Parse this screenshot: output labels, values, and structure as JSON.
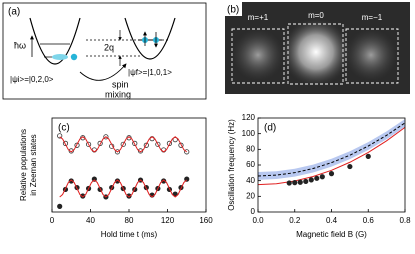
{
  "panel_a": {
    "label": "(a)",
    "hbar_omega": "ħω",
    "q_label": "2q",
    "initial_state": "|ψi>=|0,2,0>",
    "final_state": "|ψf>=|1,0,1>",
    "mixing_label": [
      "spin",
      "mixing"
    ]
  },
  "panel_b": {
    "label": "(b)",
    "components": [
      "m=+1",
      "m=0",
      "m=−1"
    ]
  },
  "chart_data": [
    {
      "type": "scatter",
      "title": "(c)",
      "xlabel": "Hold time t (ms)",
      "ylabel": [
        "Relative populations",
        "in Zeeman states"
      ],
      "xlim": [
        0,
        160
      ],
      "xticks": [
        0,
        40,
        80,
        120,
        160
      ],
      "ylim": [
        0,
        1
      ],
      "x": [
        8,
        14,
        20,
        26,
        32,
        38,
        44,
        50,
        56,
        62,
        68,
        74,
        80,
        86,
        92,
        98,
        104,
        110,
        116,
        122,
        128,
        134,
        140
      ],
      "series": [
        {
          "marker": "open",
          "color": "#333333",
          "values": [
            0.81,
            0.73,
            0.65,
            0.71,
            0.79,
            0.72,
            0.66,
            0.73,
            0.8,
            0.7,
            0.64,
            0.72,
            0.79,
            0.73,
            0.65,
            0.71,
            0.78,
            0.72,
            0.66,
            0.73,
            0.77,
            0.71,
            0.64
          ]
        },
        {
          "marker": "filled",
          "color": "#222222",
          "values": [
            0.06,
            0.24,
            0.33,
            0.26,
            0.17,
            0.25,
            0.35,
            0.24,
            0.16,
            0.26,
            0.33,
            0.25,
            0.17,
            0.24,
            0.34,
            0.26,
            0.18,
            0.25,
            0.33,
            0.24,
            0.19,
            0.26,
            0.35
          ]
        },
        {
          "marker": "line",
          "color": "#e02020",
          "x": [
            8,
            11,
            14,
            17,
            20,
            23,
            26,
            29,
            32,
            35,
            38,
            41,
            44,
            47,
            50,
            53,
            56,
            59,
            62,
            65,
            68,
            71,
            74,
            77,
            80,
            83,
            86,
            89,
            92,
            95,
            98,
            101,
            104,
            107,
            110,
            113,
            116,
            119,
            122,
            125,
            128,
            131,
            134,
            137,
            140
          ],
          "values": [
            0.8,
            0.777,
            0.72,
            0.663,
            0.64,
            0.663,
            0.72,
            0.777,
            0.8,
            0.777,
            0.72,
            0.663,
            0.64,
            0.663,
            0.72,
            0.777,
            0.8,
            0.777,
            0.72,
            0.663,
            0.64,
            0.663,
            0.72,
            0.777,
            0.8,
            0.777,
            0.72,
            0.663,
            0.64,
            0.663,
            0.72,
            0.777,
            0.8,
            0.777,
            0.72,
            0.663,
            0.64,
            0.663,
            0.72,
            0.777,
            0.8,
            0.777,
            0.72,
            0.663,
            0.64
          ]
        },
        {
          "marker": "line",
          "color": "#e02020",
          "x": [
            8,
            11,
            14,
            17,
            20,
            23,
            26,
            29,
            32,
            35,
            38,
            41,
            44,
            47,
            50,
            53,
            56,
            59,
            62,
            65,
            68,
            71,
            74,
            77,
            80,
            83,
            86,
            89,
            92,
            95,
            98,
            101,
            104,
            107,
            110,
            113,
            116,
            119,
            122,
            125,
            128,
            131,
            134,
            137,
            140
          ],
          "values": [
            0.16,
            0.186,
            0.25,
            0.314,
            0.34,
            0.314,
            0.25,
            0.186,
            0.16,
            0.186,
            0.25,
            0.314,
            0.34,
            0.314,
            0.25,
            0.186,
            0.16,
            0.186,
            0.25,
            0.314,
            0.34,
            0.314,
            0.25,
            0.186,
            0.16,
            0.186,
            0.25,
            0.314,
            0.34,
            0.314,
            0.25,
            0.186,
            0.16,
            0.186,
            0.25,
            0.314,
            0.34,
            0.314,
            0.25,
            0.186,
            0.16,
            0.186,
            0.25,
            0.314,
            0.34
          ]
        }
      ]
    },
    {
      "type": "scatter",
      "title": "(d)",
      "xlabel": "Magnetic field B (G)",
      "ylabel": "Oscillation frequency (Hz)",
      "xlim": [
        0,
        0.8
      ],
      "xticks": [
        {
          "value": 0,
          "label": "0.0"
        },
        {
          "value": 0.2,
          "label": "0.2"
        },
        {
          "value": 0.4,
          "label": "0.4"
        },
        {
          "value": 0.6,
          "label": "0.6"
        },
        {
          "value": 0.8,
          "label": "0.8"
        }
      ],
      "ylim": [
        0,
        120
      ],
      "yticks": [
        0,
        20,
        40,
        60,
        80,
        100,
        120
      ],
      "x": [
        0.17,
        0.2,
        0.23,
        0.26,
        0.29,
        0.32,
        0.35,
        0.4,
        0.5,
        0.6
      ],
      "band": {
        "color": "#b8c8f0",
        "x": [
          0,
          0.1,
          0.2,
          0.3,
          0.4,
          0.5,
          0.6,
          0.7,
          0.8
        ],
        "lower": [
          41,
          42.1,
          45.2,
          50.5,
          58,
          67.5,
          79.2,
          92.9,
          108.8
        ],
        "upper": [
          51,
          52.1,
          55.2,
          60.5,
          68,
          77.5,
          89.2,
          102.9,
          118.8
        ]
      },
      "series": [
        {
          "marker": "line",
          "color": "#e02020",
          "x": [
            0,
            0.1,
            0.2,
            0.3,
            0.4,
            0.5,
            0.6,
            0.7,
            0.8
          ],
          "values": [
            35,
            36.1,
            39.6,
            45.3,
            53.2,
            63.5,
            76,
            90.9,
            108
          ]
        },
        {
          "marker": "dashed",
          "color": "#000000",
          "x": [
            0,
            0.1,
            0.2,
            0.3,
            0.4,
            0.5,
            0.6,
            0.7,
            0.8
          ],
          "values": [
            46,
            47.1,
            50.2,
            55.5,
            63,
            72.5,
            84.2,
            97.9,
            113.8
          ]
        },
        {
          "marker": "filled",
          "color": "#222222",
          "values": [
            37,
            37.5,
            38,
            39,
            41,
            43,
            45,
            49,
            58,
            71
          ]
        }
      ]
    }
  ]
}
